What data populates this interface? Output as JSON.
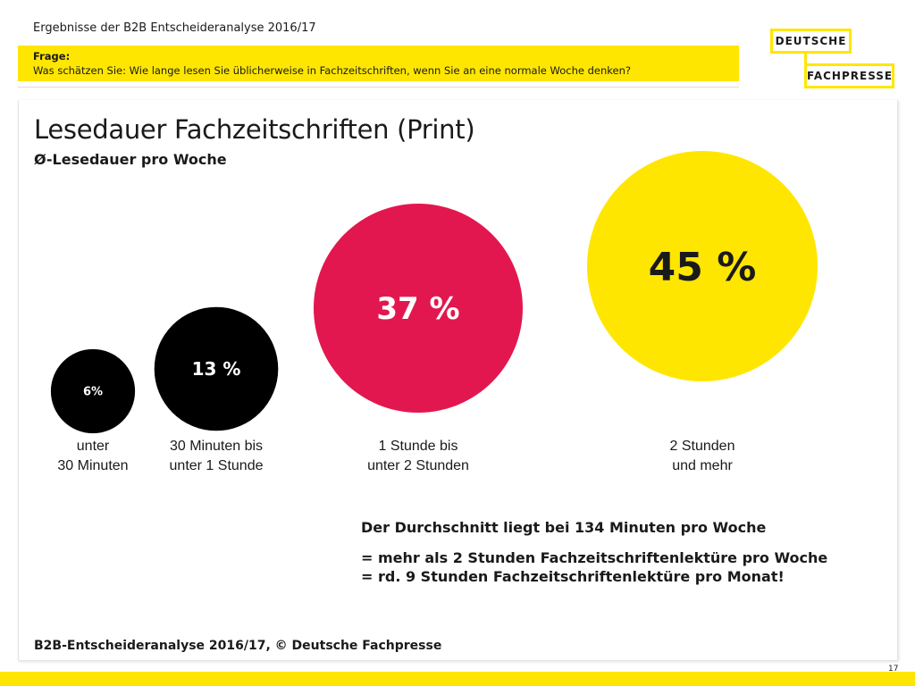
{
  "header": {
    "top_title": "Ergebnisse der B2B Entscheideranalyse 2016/17",
    "question_label": "Frage:",
    "question_text": "Was schätzen Sie: Wie lange lesen Sie üblicherweise in Fachzeitschriften, wenn Sie an eine normale Woche denken?"
  },
  "logo": {
    "line1": "DEUTSCHE",
    "line2": "FACHPRESSE"
  },
  "chart_data": {
    "type": "bubble",
    "title": "Lesedauer Fachzeitschriften (Print)",
    "subtitle": "Ø-Lesedauer pro Woche",
    "categories": [
      [
        "unter",
        "30 Minuten"
      ],
      [
        "30 Minuten bis",
        "unter 1 Stunde"
      ],
      [
        "1 Stunde bis",
        "unter 2 Stunden"
      ],
      [
        "2 Stunden",
        "und mehr"
      ]
    ],
    "values": [
      6,
      13,
      37,
      45
    ],
    "value_labels": [
      "6%",
      "13 %",
      "37 %",
      "45 %"
    ],
    "colors": [
      "#000000",
      "#000000",
      "#e3174f",
      "#ffe600"
    ],
    "label_colors": [
      "#ffffff",
      "#ffffff",
      "#ffffff",
      "#1a1a1a"
    ]
  },
  "notes": {
    "line1": "Der Durchschnitt liegt bei 134 Minuten pro Woche",
    "line2": "= mehr als 2 Stunden Fachzeitschriftenlektüre pro Woche",
    "line3": "= rd. 9 Stunden Fachzeitschriftenlektüre pro Monat!"
  },
  "footer": "B2B-Entscheideranalyse 2016/17, © Deutsche Fachpresse",
  "page_number": "17"
}
